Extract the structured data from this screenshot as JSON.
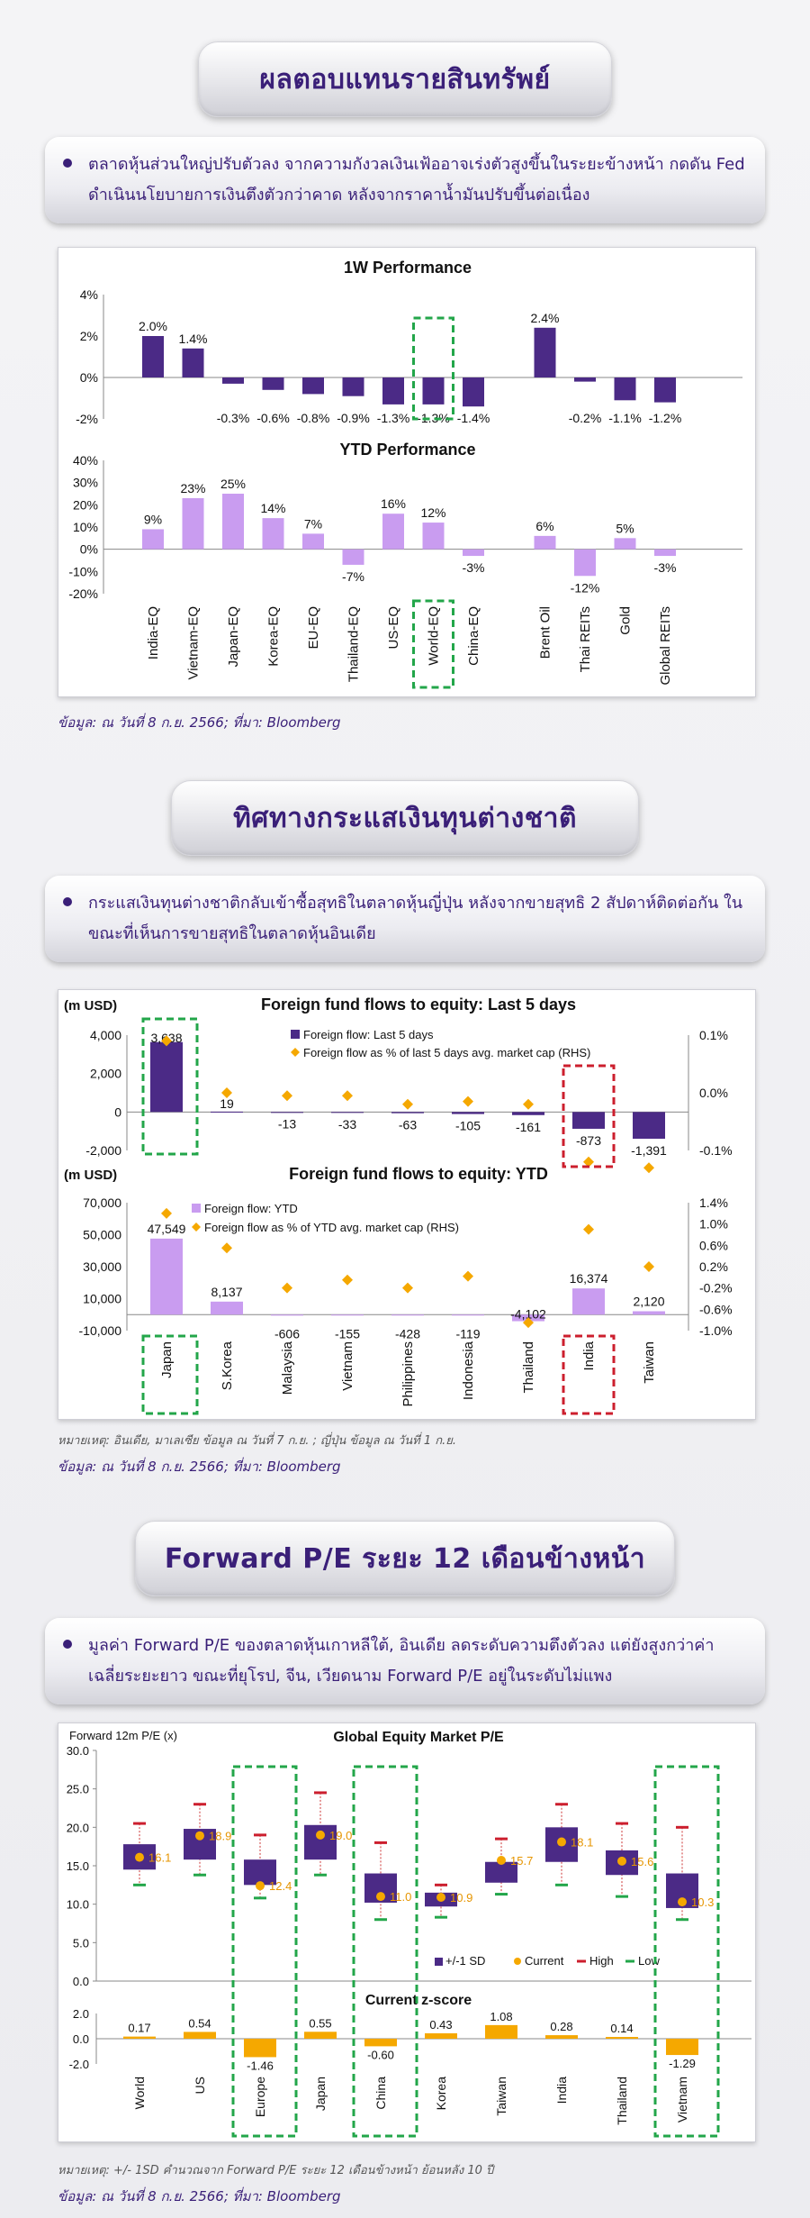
{
  "section1": {
    "title": "ผลตอบแทนรายสินทรัพย์",
    "bullet": "ตลาดหุ้นส่วนใหญ่ปรับตัวลง จากความกังวลเงินเฟ้ออาจเร่งตัวสูงขึ้นในระยะข้างหน้า กดดัน Fed ดำเนินนโยบายการเงินตึงตัวกว่าคาด หลังจากราคาน้ำมันปรับขึ้นต่อเนื่อง",
    "source": "ข้อมูล: ณ วันที่ 8 ก.ย. 2566; ที่มา: Bloomberg"
  },
  "section2": {
    "title": "ทิศทางกระแสเงินทุนต่างชาติ",
    "bullet": "กระแสเงินทุนต่างชาติกลับเข้าซื้อสุทธิในตลาดหุ้นญี่ปุ่น หลังจากขายสุทธิ 2 สัปดาห์ติดต่อกัน ในขณะที่เห็นการขายสุทธิในตลาดหุ้นอินเดีย",
    "note": "หมายเหตุ: อินเดีย, มาเลเซีย ข้อมูล ณ วันที่ 7 ก.ย. ; ญี่ปุ่น ข้อมูล ณ วันที่ 1 ก.ย.",
    "source": "ข้อมูล: ณ วันที่ 8 ก.ย. 2566; ที่มา: Bloomberg"
  },
  "section3": {
    "title": "Forward P/E ระยะ 12 เดือนข้างหน้า",
    "bullet": "มูลค่า Forward P/E ของตลาดหุ้นเกาหลีใต้, อินเดีย ลดระดับความตึงตัวลง แต่ยังสูงกว่าค่าเฉลี่ยระยะยาว ขณะที่ยุโรป, จีน, เวียดนาม Forward P/E อยู่ในระดับไม่แพง",
    "note": "หมายเหตุ: +/- 1SD คำนวณจาก Forward P/E ระยะ 12 เดือนข้างหน้า ย้อนหลัง 10 ปี",
    "source": "ข้อมูล: ณ วันที่ 8 ก.ย. 2566; ที่มา: Bloomberg"
  },
  "colors": {
    "purple": "#4b2a86",
    "light_purple": "#c99cf0",
    "orange": "#f5a800",
    "dark_red": "#cc1f2e",
    "green_dash": "#23a64a",
    "red_dash": "#cc1f2e",
    "title_text": "#3a1f78"
  },
  "chart_data": [
    {
      "type": "bar",
      "title": "1W Performance",
      "categories": [
        "India-EQ",
        "Vietnam-EQ",
        "Japan-EQ",
        "Korea-EQ",
        "EU-EQ",
        "Thailand-EQ",
        "US-EQ",
        "World-EQ",
        "China-EQ",
        "Brent Oil",
        "Thai REITs",
        "Gold",
        "Global REITs"
      ],
      "values": [
        2.0,
        1.4,
        -0.3,
        -0.6,
        -0.8,
        -0.9,
        -1.3,
        -1.3,
        -1.4,
        2.4,
        -0.2,
        -1.1,
        -1.2
      ],
      "labels": [
        "2.0%",
        "1.4%",
        "-0.3%",
        "-0.6%",
        "-0.8%",
        "-0.9%",
        "-1.3%",
        "-1.3%",
        "-1.4%",
        "2.4%",
        "-0.2%",
        "-1.1%",
        "-1.2%"
      ],
      "yticks": [
        "4%",
        "2%",
        "0%",
        "-2%"
      ],
      "ylim": [
        -2,
        4
      ],
      "highlight": "World-EQ"
    },
    {
      "type": "bar",
      "title": "YTD Performance",
      "categories": [
        "India-EQ",
        "Vietnam-EQ",
        "Japan-EQ",
        "Korea-EQ",
        "EU-EQ",
        "Thailand-EQ",
        "US-EQ",
        "World-EQ",
        "China-EQ",
        "Brent Oil",
        "Thai REITs",
        "Gold",
        "Global REITs"
      ],
      "values": [
        9,
        23,
        25,
        14,
        7,
        -7,
        16,
        12,
        -3,
        6,
        -12,
        5,
        -3
      ],
      "labels": [
        "9%",
        "23%",
        "25%",
        "14%",
        "7%",
        "-7%",
        "16%",
        "12%",
        "-3%",
        "6%",
        "-12%",
        "5%",
        "-3%"
      ],
      "yticks": [
        "40%",
        "30%",
        "20%",
        "10%",
        "0%",
        "-10%",
        "-20%"
      ],
      "ylim": [
        -20,
        40
      ],
      "highlight": "World-EQ"
    },
    {
      "type": "bar",
      "title": "Foreign fund flows to equity: Last 5 days",
      "unit_label": "(m USD)",
      "categories": [
        "Japan",
        "S.Korea",
        "Malaysia",
        "Vietnam",
        "Philippines",
        "Indonesia",
        "Thailand",
        "India",
        "Taiwan"
      ],
      "series": [
        {
          "name": "Foreign flow: Last 5 days",
          "values": [
            3638,
            19,
            -13,
            -33,
            -63,
            -105,
            -161,
            -873,
            -1391
          ]
        },
        {
          "name": "Foreign flow as % of last 5 days avg. market cap (RHS)",
          "values": [
            0.09,
            0.0,
            -0.005,
            -0.005,
            -0.02,
            -0.015,
            -0.02,
            -0.12,
            -0.13
          ]
        }
      ],
      "labels": [
        "3,638",
        "19",
        "-13",
        "-33",
        "-63",
        "-105",
        "-161",
        "-873",
        "-1,391"
      ],
      "yticks": [
        "4,000",
        "2,000",
        "0",
        "-2,000"
      ],
      "ylim": [
        -2000,
        4000
      ],
      "rhs_ticks": [
        "0.1%",
        "0.0%",
        "-0.1%"
      ],
      "rhs_lim": [
        -0.1,
        0.1
      ]
    },
    {
      "type": "bar",
      "title": "Foreign fund flows to equity: YTD",
      "unit_label": "(m USD)",
      "categories": [
        "Japan",
        "S.Korea",
        "Malaysia",
        "Vietnam",
        "Philippines",
        "Indonesia",
        "Thailand",
        "India",
        "Taiwan"
      ],
      "series": [
        {
          "name": "Foreign flow: YTD",
          "values": [
            47549,
            8137,
            -606,
            -155,
            -428,
            -119,
            -4102,
            16374,
            2120
          ]
        },
        {
          "name": "Foreign flow as % of YTD avg. market cap (RHS)",
          "values": [
            1.2,
            0.55,
            -0.2,
            -0.05,
            -0.2,
            0.02,
            -0.85,
            0.9,
            0.2
          ]
        }
      ],
      "labels": [
        "47,549",
        "8,137",
        "-606",
        "-155",
        "-428",
        "-119",
        "-4,102",
        "16,374",
        "2,120"
      ],
      "yticks": [
        "70,000",
        "50,000",
        "30,000",
        "10,000",
        "-10,000"
      ],
      "ylim": [
        -10000,
        70000
      ],
      "rhs_ticks": [
        "1.4%",
        "1.0%",
        "0.6%",
        "0.2%",
        "-0.2%",
        "-0.6%",
        "-1.0%"
      ],
      "rhs_lim": [
        -1.0,
        1.4
      ]
    },
    {
      "type": "bar",
      "title": "Global Equity Market P/E",
      "ylabel": "Forward 12m P/E (x)",
      "categories": [
        "World",
        "US",
        "Europe",
        "Japan",
        "China",
        "Korea",
        "Taiwan",
        "India",
        "Thailand",
        "Vietnam"
      ],
      "sd_low": [
        14.5,
        15.8,
        12.5,
        15.8,
        10.2,
        9.7,
        12.8,
        15.5,
        13.8,
        9.5
      ],
      "sd_high": [
        17.8,
        19.8,
        15.8,
        20.3,
        14.0,
        11.5,
        15.5,
        20.0,
        17.0,
        14.0
      ],
      "current": [
        16.1,
        18.9,
        12.4,
        19.0,
        11.0,
        10.9,
        15.7,
        18.1,
        15.6,
        10.3
      ],
      "current_labels": [
        "16.1",
        "18.9",
        "12.4",
        "19.0",
        "11.0",
        "10.9",
        "15.7",
        "18.1",
        "15.6",
        "10.3"
      ],
      "high": [
        20.5,
        23.0,
        19.0,
        24.5,
        18.0,
        12.5,
        18.5,
        23.0,
        20.5,
        20.0
      ],
      "low": [
        12.5,
        13.8,
        10.8,
        13.8,
        8.0,
        8.3,
        11.3,
        12.5,
        11.0,
        8.0
      ],
      "yticks": [
        "30.0",
        "25.0",
        "20.0",
        "15.0",
        "10.0",
        "5.0",
        "0.0"
      ],
      "ylim": [
        0,
        30
      ],
      "legend": [
        "+/-1 SD",
        "Current",
        "High",
        "Low"
      ],
      "highlight": [
        "Europe",
        "China",
        "Vietnam"
      ]
    },
    {
      "type": "bar",
      "title": "Current z-score",
      "categories": [
        "World",
        "US",
        "Europe",
        "Japan",
        "China",
        "Korea",
        "Taiwan",
        "India",
        "Thailand",
        "Vietnam"
      ],
      "values": [
        0.17,
        0.54,
        -1.46,
        0.55,
        -0.6,
        0.43,
        1.08,
        0.28,
        0.14,
        -1.29
      ],
      "labels": [
        "0.17",
        "0.54",
        "-1.46",
        "0.55",
        "-0.60",
        "0.43",
        "1.08",
        "0.28",
        "0.14",
        "-1.29"
      ],
      "yticks": [
        "2.0",
        "0.0",
        "-2.0"
      ],
      "ylim": [
        -2,
        2
      ]
    }
  ]
}
